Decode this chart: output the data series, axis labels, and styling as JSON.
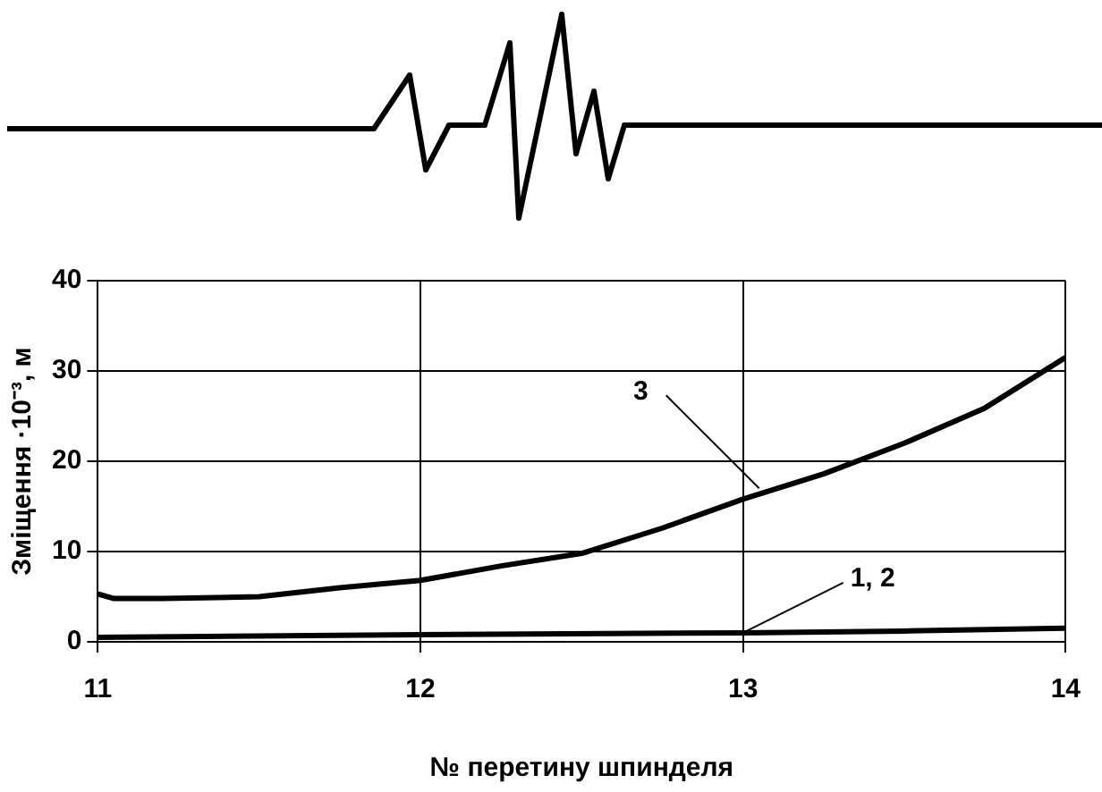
{
  "chart_data": {
    "type": "line",
    "xlabel": "№ перетину шпинделя",
    "ylabel": "Зміщення ·10⁻³, м",
    "xlim": [
      11,
      14
    ],
    "xticks": [
      11,
      12,
      13,
      14
    ],
    "ylim": [
      0,
      40
    ],
    "yticks": [
      0,
      10,
      20,
      30,
      40
    ],
    "grid": true,
    "legend": false,
    "marker": "none",
    "line_style": "solid",
    "series": [
      {
        "color": "#000000",
        "x": [
          11,
          11.05,
          11.2,
          11.5,
          11.75,
          12,
          12.25,
          12.5,
          12.75,
          13,
          13.25,
          13.5,
          13.75,
          14
        ],
        "values": [
          5.3,
          4.8,
          4.8,
          5.0,
          6.0,
          6.8,
          8.4,
          9.8,
          12.6,
          15.8,
          18.6,
          22,
          25.9,
          31.5
        ]
      },
      {
        "color": "#000000",
        "x": [
          11,
          12,
          13,
          13.5,
          14
        ],
        "values": [
          0.5,
          0.8,
          1.0,
          1.2,
          1.5
        ]
      }
    ],
    "annotations": [
      {
        "text": "3",
        "x": 13.05,
        "y": 17
      },
      {
        "text": "1, 2",
        "x": 13.0,
        "y": 1
      }
    ]
  }
}
